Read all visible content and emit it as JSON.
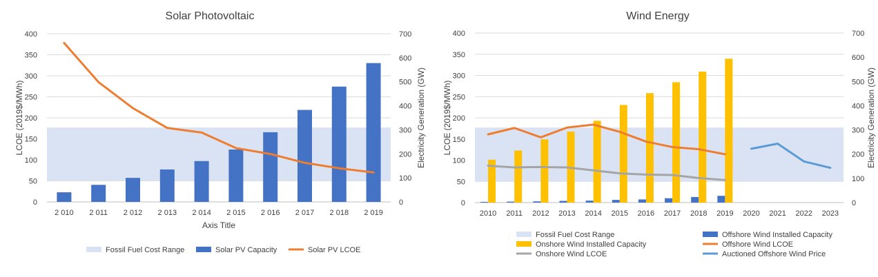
{
  "chart_data": [
    {
      "type": "bar",
      "title": "Solar Photovoltaic",
      "xlabel": "Axis Title",
      "ylabel": "LCOE (2019$/MWh)",
      "y2label": "Electricity Generation (GW)",
      "ylim": [
        0,
        400
      ],
      "y2lim": [
        0,
        700
      ],
      "yticks": [
        "0",
        "50",
        "100",
        "150",
        "200",
        "250",
        "300",
        "350",
        "400"
      ],
      "y2ticks": [
        "0",
        "100",
        "200",
        "300",
        "400",
        "500",
        "600",
        "700"
      ],
      "categories": [
        "2 010",
        "2 011",
        "2 012",
        "2 013",
        "2 014",
        "2 015",
        "2 016",
        "2 017",
        "2 018",
        "2 019"
      ],
      "band": {
        "name": "Fossil Fuel Cost Range",
        "min": 50,
        "max": 177,
        "color": "#dae3f3"
      },
      "series": [
        {
          "name": "Solar PV Capacity",
          "kind": "bar",
          "axis": "right",
          "color": "#4472c4",
          "values": [
            40,
            71,
            100,
            135,
            170,
            218,
            290,
            383,
            480,
            578
          ]
        },
        {
          "name": "Solar PV LCOE",
          "kind": "line",
          "axis": "left",
          "color": "#ed7d31",
          "values": [
            378,
            285,
            223,
            176,
            165,
            128,
            114,
            93,
            80,
            70
          ]
        }
      ],
      "legend": "bottom"
    },
    {
      "type": "bar",
      "title": "Wind Energy",
      "xlabel": "",
      "ylabel": "LCOE (2019$/MWh)",
      "y2label": "Electricity Generation (GW)",
      "ylim": [
        0,
        400
      ],
      "y2lim": [
        0,
        700
      ],
      "yticks": [
        "0",
        "50",
        "100",
        "150",
        "200",
        "250",
        "300",
        "350",
        "400"
      ],
      "y2ticks": [
        "0",
        "100",
        "200",
        "300",
        "400",
        "500",
        "600",
        "700"
      ],
      "categories": [
        "2010",
        "2011",
        "2012",
        "2013",
        "2014",
        "2015",
        "2016",
        "2017",
        "2018",
        "2019",
        "2020",
        "2021",
        "2022",
        "2023"
      ],
      "band": {
        "name": "Fossil Fuel Cost Range",
        "min": 50,
        "max": 177,
        "color": "#dae3f3"
      },
      "series": [
        {
          "name": "Offshore Wind Installed Capacity",
          "kind": "bar",
          "axis": "right",
          "color": "#4472c4",
          "values": [
            3,
            4,
            5,
            7,
            8,
            11,
            13,
            18,
            23,
            28,
            null,
            null,
            null,
            null
          ]
        },
        {
          "name": "Onshore Wind Installed Capacity",
          "kind": "bar",
          "axis": "right",
          "color": "#ffc000",
          "values": [
            177,
            215,
            261,
            293,
            338,
            403,
            452,
            497,
            541,
            594,
            null,
            null,
            null,
            null
          ]
        },
        {
          "name": "Offshore Wind LCOE",
          "kind": "line",
          "axis": "left",
          "color": "#ed7d31",
          "values": [
            161,
            176,
            154,
            177,
            184,
            167,
            144,
            131,
            126,
            114,
            null,
            null,
            null,
            null
          ]
        },
        {
          "name": "Onshore Wind LCOE",
          "kind": "line",
          "axis": "left",
          "color": "#a5a5a5",
          "values": [
            87,
            83,
            84,
            83,
            76,
            69,
            66,
            65,
            58,
            53,
            null,
            null,
            null,
            null
          ]
        },
        {
          "name": "Auctioned Offshore Wind Price",
          "kind": "line",
          "axis": "left",
          "color": "#5b9bd5",
          "values": [
            null,
            null,
            null,
            null,
            null,
            null,
            null,
            null,
            null,
            null,
            127,
            139,
            97,
            82
          ]
        }
      ],
      "legend": "bottom"
    }
  ]
}
